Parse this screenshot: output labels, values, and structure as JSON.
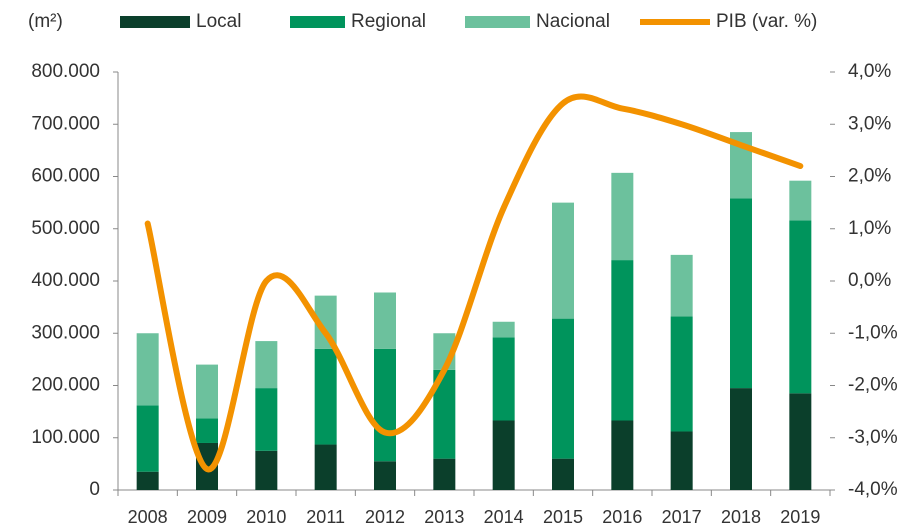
{
  "chart_data": {
    "type": "bar",
    "stacked": true,
    "y_label": "(m²)",
    "categories": [
      "2008",
      "2009",
      "2010",
      "2011",
      "2012",
      "2013",
      "2014",
      "2015",
      "2016",
      "2017",
      "2018",
      "2019"
    ],
    "series": [
      {
        "name": "Local",
        "color": "#0b3f2b",
        "values": [
          35000,
          90000,
          75000,
          87000,
          55000,
          60000,
          133000,
          60000,
          133000,
          112000,
          195000,
          185000
        ]
      },
      {
        "name": "Regional",
        "color": "#00945c",
        "values": [
          127000,
          47000,
          120000,
          183000,
          215000,
          170000,
          159000,
          268000,
          307000,
          220000,
          363000,
          331000
        ]
      },
      {
        "name": "Nacional",
        "color": "#6cc19d",
        "values": [
          138000,
          103000,
          90000,
          102000,
          108000,
          70000,
          30000,
          222000,
          167000,
          118000,
          127000,
          76000
        ]
      },
      {
        "name": "PIB (var. %)",
        "color": "#f39200",
        "type": "line",
        "axis": "y2",
        "values": [
          1.1,
          -3.6,
          0.0,
          -1.0,
          -2.9,
          -1.7,
          1.4,
          3.4,
          3.3,
          3.0,
          2.6,
          2.2
        ]
      }
    ],
    "ylim": [
      0,
      800000
    ],
    "yticks": [
      0,
      {
        "value": 100000,
        "label": "100.000"
      },
      {
        "value": 200000,
        "label": "200.000"
      },
      {
        "value": 300000,
        "label": "300.000"
      },
      {
        "value": 400000,
        "label": "400.000"
      },
      {
        "value": 500000,
        "label": "500.000"
      },
      {
        "value": 600000,
        "label": "600.000"
      },
      {
        "value": 700000,
        "label": "700.000"
      },
      {
        "value": 800000,
        "label": "800.000"
      }
    ],
    "y2lim": [
      -4,
      4
    ],
    "y2ticks": [
      {
        "value": -4,
        "label": "-4,0%"
      },
      {
        "value": -3,
        "label": "-3,0%"
      },
      {
        "value": -2,
        "label": "-2,0%"
      },
      {
        "value": -1,
        "label": "-1,0%"
      },
      {
        "value": 0,
        "label": "0,0%"
      },
      {
        "value": 1,
        "label": "1,0%"
      },
      {
        "value": 2,
        "label": "2,0%"
      },
      {
        "value": 3,
        "label": "3,0%"
      },
      {
        "value": 4,
        "label": "4,0%"
      }
    ],
    "legend": "top"
  }
}
